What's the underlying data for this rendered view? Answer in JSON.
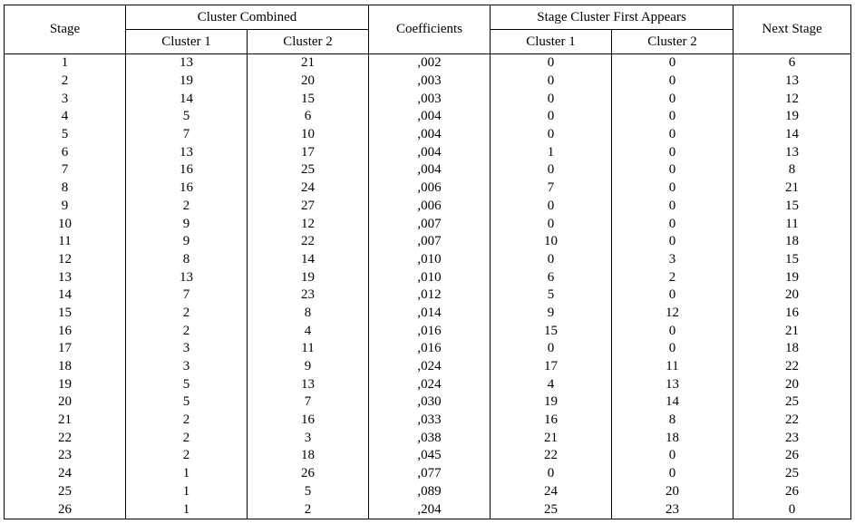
{
  "headers": {
    "stage": "Stage",
    "cluster_combined": "Cluster Combined",
    "cc_cluster1": "Cluster 1",
    "cc_cluster2": "Cluster 2",
    "coefficients": "Coefficients",
    "first_appears": "Stage Cluster First Appears",
    "fa_cluster1": "Cluster 1",
    "fa_cluster2": "Cluster 2",
    "next_stage": "Next Stage"
  },
  "rows": [
    [
      "1",
      "13",
      "21",
      ",002",
      "0",
      "0",
      "6"
    ],
    [
      "2",
      "19",
      "20",
      ",003",
      "0",
      "0",
      "13"
    ],
    [
      "3",
      "14",
      "15",
      ",003",
      "0",
      "0",
      "12"
    ],
    [
      "4",
      "5",
      "6",
      ",004",
      "0",
      "0",
      "19"
    ],
    [
      "5",
      "7",
      "10",
      ",004",
      "0",
      "0",
      "14"
    ],
    [
      "6",
      "13",
      "17",
      ",004",
      "1",
      "0",
      "13"
    ],
    [
      "7",
      "16",
      "25",
      ",004",
      "0",
      "0",
      "8"
    ],
    [
      "8",
      "16",
      "24",
      ",006",
      "7",
      "0",
      "21"
    ],
    [
      "9",
      "2",
      "27",
      ",006",
      "0",
      "0",
      "15"
    ],
    [
      "10",
      "9",
      "12",
      ",007",
      "0",
      "0",
      "11"
    ],
    [
      "11",
      "9",
      "22",
      ",007",
      "10",
      "0",
      "18"
    ],
    [
      "12",
      "8",
      "14",
      ",010",
      "0",
      "3",
      "15"
    ],
    [
      "13",
      "13",
      "19",
      ",010",
      "6",
      "2",
      "19"
    ],
    [
      "14",
      "7",
      "23",
      ",012",
      "5",
      "0",
      "20"
    ],
    [
      "15",
      "2",
      "8",
      ",014",
      "9",
      "12",
      "16"
    ],
    [
      "16",
      "2",
      "4",
      ",016",
      "15",
      "0",
      "21"
    ],
    [
      "17",
      "3",
      "11",
      ",016",
      "0",
      "0",
      "18"
    ],
    [
      "18",
      "3",
      "9",
      ",024",
      "17",
      "11",
      "22"
    ],
    [
      "19",
      "5",
      "13",
      ",024",
      "4",
      "13",
      "20"
    ],
    [
      "20",
      "5",
      "7",
      ",030",
      "19",
      "14",
      "25"
    ],
    [
      "21",
      "2",
      "16",
      ",033",
      "16",
      "8",
      "22"
    ],
    [
      "22",
      "2",
      "3",
      ",038",
      "21",
      "18",
      "23"
    ],
    [
      "23",
      "2",
      "18",
      ",045",
      "22",
      "0",
      "26"
    ],
    [
      "24",
      "1",
      "26",
      ",077",
      "0",
      "0",
      "25"
    ],
    [
      "25",
      "1",
      "5",
      ",089",
      "24",
      "20",
      "26"
    ],
    [
      "26",
      "1",
      "2",
      ",204",
      "25",
      "23",
      "0"
    ]
  ]
}
